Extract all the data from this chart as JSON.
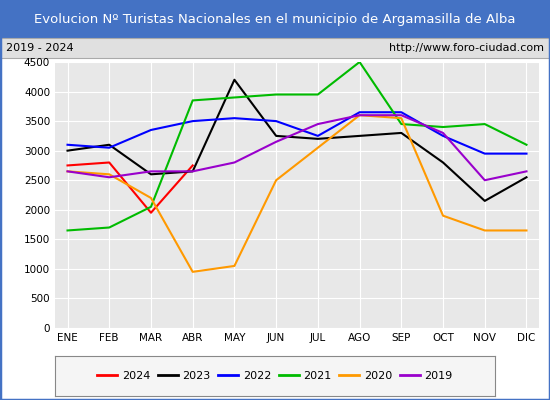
{
  "title": "Evolucion Nº Turistas Nacionales en el municipio de Argamasilla de Alba",
  "subtitle_left": "2019 - 2024",
  "subtitle_right": "http://www.foro-ciudad.com",
  "months": [
    "ENE",
    "FEB",
    "MAR",
    "ABR",
    "MAY",
    "JUN",
    "JUL",
    "AGO",
    "SEP",
    "OCT",
    "NOV",
    "DIC"
  ],
  "series": {
    "2024": {
      "color": "#ff0000",
      "data": [
        2750,
        2800,
        1950,
        2750,
        null,
        null,
        null,
        null,
        null,
        null,
        null,
        null
      ]
    },
    "2023": {
      "color": "#000000",
      "data": [
        3000,
        3100,
        2600,
        2650,
        4200,
        3250,
        3200,
        3250,
        3300,
        2800,
        2150,
        2550
      ]
    },
    "2022": {
      "color": "#0000ff",
      "data": [
        3100,
        3050,
        3350,
        3500,
        3550,
        3500,
        3250,
        3650,
        3650,
        3250,
        2950,
        2950
      ]
    },
    "2021": {
      "color": "#00bb00",
      "data": [
        1650,
        1700,
        2050,
        3850,
        3900,
        3950,
        3950,
        4500,
        3450,
        3400,
        3450,
        3100
      ]
    },
    "2020": {
      "color": "#ff9900",
      "data": [
        2650,
        2600,
        2200,
        950,
        1050,
        2500,
        3050,
        3600,
        3550,
        1900,
        1650,
        1650
      ]
    },
    "2019": {
      "color": "#9900cc",
      "data": [
        2650,
        2550,
        2650,
        2650,
        2800,
        3150,
        3450,
        3600,
        3600,
        3300,
        2500,
        2650
      ]
    }
  },
  "ylim": [
    0,
    4500
  ],
  "yticks": [
    0,
    500,
    1000,
    1500,
    2000,
    2500,
    3000,
    3500,
    4000,
    4500
  ],
  "title_bg_color": "#4472c4",
  "title_color": "#ffffff",
  "plot_bg_color": "#e8e8e8",
  "grid_color": "#ffffff",
  "border_color": "#4472c4",
  "legend_order": [
    "2024",
    "2023",
    "2022",
    "2021",
    "2020",
    "2019"
  ],
  "title_fontsize": 9.5,
  "subtitle_fontsize": 8,
  "tick_fontsize": 7.5,
  "legend_fontsize": 8
}
